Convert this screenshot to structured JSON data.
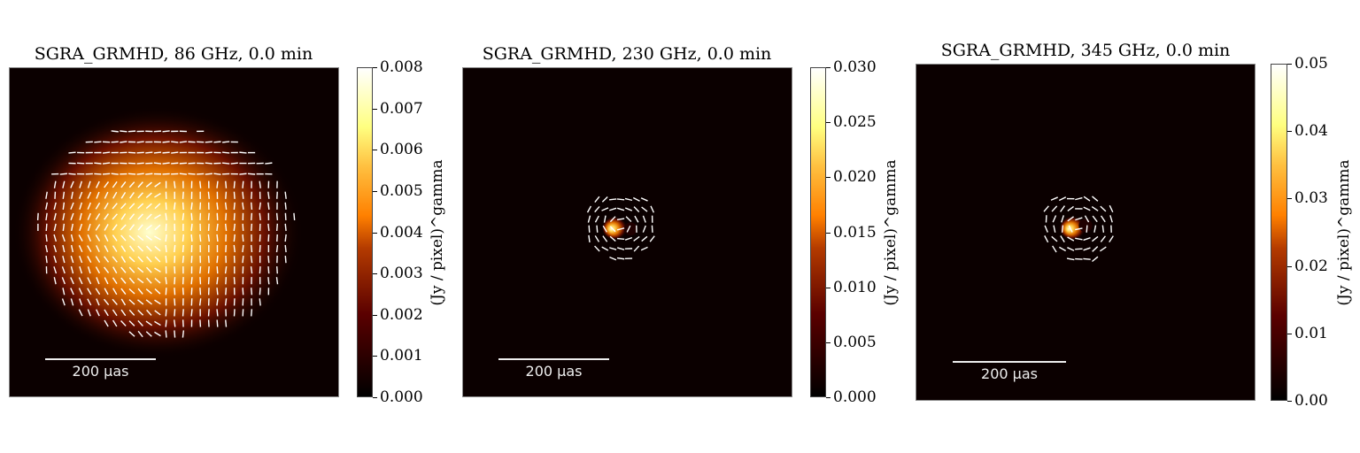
{
  "chart_data": [
    {
      "type": "heatmap",
      "title": "SGRA_GRMHD, 86 GHz, 0.0 min",
      "colorbar": {
        "label": "(Jy / pixel)^gamma",
        "range": [
          0.0,
          0.008
        ],
        "ticks": [
          "0.000",
          "0.001",
          "0.002",
          "0.003",
          "0.004",
          "0.005",
          "0.006",
          "0.007",
          "0.008"
        ],
        "colormap": "afmhot"
      },
      "scalebar": "200 μas",
      "polarization_ticks": true,
      "source_extent": "large"
    },
    {
      "type": "heatmap",
      "title": "SGRA_GRMHD, 230 GHz, 0.0 min",
      "colorbar": {
        "label": "(Jy / pixel)^gamma",
        "range": [
          0.0,
          0.03
        ],
        "ticks": [
          "0.000",
          "0.005",
          "0.010",
          "0.015",
          "0.020",
          "0.025",
          "0.030"
        ],
        "colormap": "afmhot"
      },
      "scalebar": "200 μas",
      "polarization_ticks": true,
      "source_extent": "compact"
    },
    {
      "type": "heatmap",
      "title": "SGRA_GRMHD, 345 GHz, 0.0 min",
      "colorbar": {
        "label": "(Jy / pixel)^gamma",
        "range": [
          0.0,
          0.05
        ],
        "ticks": [
          "0.00",
          "0.01",
          "0.02",
          "0.03",
          "0.04",
          "0.05"
        ],
        "colormap": "afmhot"
      },
      "scalebar": "200 μas",
      "polarization_ticks": true,
      "source_extent": "compact"
    }
  ]
}
